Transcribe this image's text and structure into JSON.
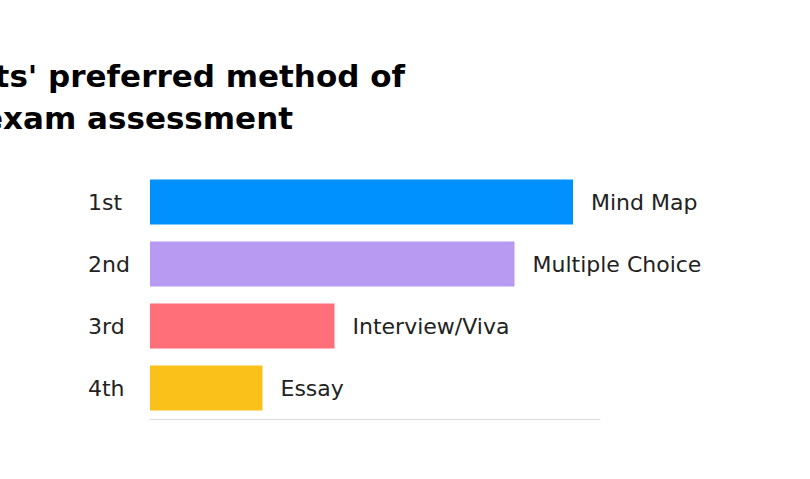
{
  "chart_data": {
    "type": "bar",
    "title": "Students' preferred method of\nexam assessment",
    "orientation": "horizontal",
    "categories": [
      "1st",
      "2nd",
      "3rd",
      "4th"
    ],
    "bar_labels": [
      "Mind Map",
      "Multiple Choice",
      "Interview/Viva",
      "Essay"
    ],
    "values": [
      94,
      81,
      41,
      25
    ],
    "colors": [
      "#0091ff",
      "#b99af2",
      "#ff6f79",
      "#fac11a"
    ],
    "xlim": [
      0,
      100
    ],
    "xticks": [
      0,
      100
    ],
    "grid": false,
    "tick_labels": "y"
  }
}
